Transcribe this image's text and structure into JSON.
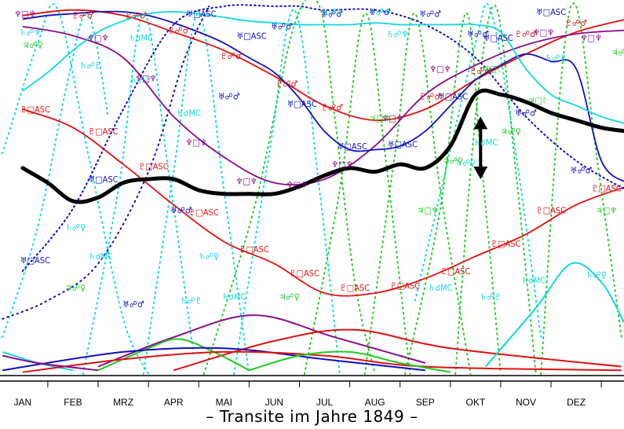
{
  "title": "– Transite im Jahre 1849 –",
  "chart_data": {
    "type": "line",
    "title": "– Transite im Jahre 1849 –",
    "xlabel": "",
    "ylabel": "",
    "x_tick_labels": [
      "JAN",
      "FEB",
      "MRZ",
      "APR",
      "MAI",
      "JUN",
      "JUL",
      "AUG",
      "SEP",
      "OKT",
      "NOV",
      "DEZ"
    ],
    "xlim": [
      0,
      12
    ],
    "ylim": [
      0,
      1
    ],
    "grid": false,
    "legend": "none",
    "colors": {
      "pluto": "#e01010",
      "neptune": "#8a0a8a",
      "uranus": "#1010c0",
      "saturn": "#10d8e0",
      "jupiter": "#20cc20",
      "bold": "#000000"
    },
    "series": [
      {
        "color": "pluto",
        "style": "solid",
        "x": [
          0,
          1,
          2,
          3,
          4,
          5,
          6,
          7,
          8,
          9,
          10,
          11,
          12
        ],
        "y": [
          0.975,
          0.99,
          0.975,
          0.93,
          0.88,
          0.81,
          0.73,
          0.69,
          0.72,
          0.8,
          0.87,
          0.93,
          0.965
        ]
      },
      {
        "color": "pluto",
        "style": "solid",
        "x": [
          0,
          1,
          2,
          3,
          4,
          5,
          6,
          7,
          8,
          9,
          10,
          11,
          12
        ],
        "y": [
          0.72,
          0.67,
          0.57,
          0.46,
          0.36,
          0.3,
          0.22,
          0.22,
          0.26,
          0.32,
          0.38,
          0.46,
          0.51
        ]
      },
      {
        "color": "neptune",
        "style": "solid",
        "x": [
          0,
          1,
          2,
          3,
          4,
          5,
          6,
          7,
          8,
          9,
          10,
          11,
          12
        ],
        "y": [
          0.945,
          0.92,
          0.86,
          0.7,
          0.59,
          0.52,
          0.53,
          0.62,
          0.76,
          0.84,
          0.895,
          0.925,
          0.935
        ]
      },
      {
        "color": "uranus",
        "style": "solid",
        "x": [
          0,
          0.5,
          1,
          1.5,
          2,
          2.5,
          3,
          3.5,
          4,
          4.5,
          5,
          5.5,
          6,
          6.5,
          7,
          7.5,
          8,
          8.5,
          9,
          9.5,
          10,
          10.5,
          11,
          11.5,
          12
        ],
        "y": [
          0.965,
          0.975,
          0.98,
          0.985,
          0.985,
          0.975,
          0.955,
          0.93,
          0.9,
          0.86,
          0.82,
          0.75,
          0.66,
          0.61,
          0.61,
          0.62,
          0.66,
          0.73,
          0.8,
          0.84,
          0.87,
          0.85,
          0.83,
          0.58,
          0.52
        ]
      },
      {
        "color": "uranus",
        "style": "dotted",
        "x": [
          0,
          1,
          2,
          3,
          4,
          5,
          5.5,
          6,
          7,
          8,
          9,
          10,
          11,
          12
        ],
        "y": [
          0.28,
          0.45,
          0.72,
          0.95,
          1,
          1,
          1,
          0.99,
          0.99,
          0.95,
          0.86,
          0.7,
          0.58,
          0.5
        ]
      },
      {
        "color": "saturn",
        "style": "solid",
        "x": [
          0,
          0.5,
          1,
          1.5,
          2,
          2.5,
          3,
          3.5,
          4,
          4.5,
          5,
          5.5,
          6,
          6.5,
          7,
          7.5,
          8,
          8.5,
          9,
          9.5,
          10,
          10.5,
          11,
          11.5,
          12
        ],
        "y": [
          0.77,
          0.82,
          0.88,
          0.93,
          0.96,
          0.98,
          0.985,
          0.98,
          0.97,
          0.96,
          0.955,
          0.95,
          0.95,
          0.95,
          0.955,
          0.95,
          0.95,
          0.95,
          0.95,
          0.93,
          0.83,
          0.76,
          0.73,
          0.7,
          0.68
        ]
      },
      {
        "color": "bold",
        "style": "bold",
        "x": [
          0,
          0.5,
          1,
          1.5,
          2,
          2.5,
          3,
          3.5,
          4,
          4.5,
          5,
          5.5,
          6,
          6.5,
          7,
          7.5,
          8,
          8.5,
          9,
          9.5,
          10,
          10.5,
          11,
          11.5,
          12
        ],
        "y": [
          0.56,
          0.52,
          0.47,
          0.48,
          0.52,
          0.53,
          0.53,
          0.5,
          0.49,
          0.49,
          0.49,
          0.51,
          0.54,
          0.56,
          0.55,
          0.57,
          0.56,
          0.62,
          0.76,
          0.76,
          0.74,
          0.71,
          0.69,
          0.67,
          0.66
        ]
      }
    ],
    "annotations": [
      {
        "text": "♇☍♂",
        "x": 1.2,
        "y": 0.975,
        "color": "pluto"
      },
      {
        "text": "♇☍♂",
        "x": 2.25,
        "y": 0.975,
        "color": "pluto"
      },
      {
        "text": "♇☍♂",
        "x": 3.1,
        "y": 0.935,
        "color": "pluto"
      },
      {
        "text": "♇☍♂",
        "x": 4.15,
        "y": 0.865,
        "color": "pluto"
      },
      {
        "text": "♇☍♂",
        "x": 5.25,
        "y": 0.79,
        "color": "pluto"
      },
      {
        "text": "♇☍♂",
        "x": 6.15,
        "y": 0.725,
        "color": "pluto"
      },
      {
        "text": "♇☍♂",
        "x": 8.1,
        "y": 0.755,
        "color": "pluto"
      },
      {
        "text": "♇☍♂",
        "x": 9.1,
        "y": 0.825,
        "color": "pluto"
      },
      {
        "text": "♇☍♂",
        "x": 10.0,
        "y": 0.925,
        "color": "pluto"
      },
      {
        "text": "♇☍♂",
        "x": 11.0,
        "y": 0.955,
        "color": "pluto"
      },
      {
        "text": "♇□ASC",
        "x": 0.25,
        "y": 0.72,
        "color": "pluto"
      },
      {
        "text": "♇□ASC",
        "x": 1.6,
        "y": 0.66,
        "color": "pluto"
      },
      {
        "text": "♇□ASC",
        "x": 2.6,
        "y": 0.565,
        "color": "pluto"
      },
      {
        "text": "♇□ASC",
        "x": 3.6,
        "y": 0.44,
        "color": "pluto"
      },
      {
        "text": "♇□ASC",
        "x": 4.6,
        "y": 0.34,
        "color": "pluto"
      },
      {
        "text": "♇□ASC",
        "x": 5.6,
        "y": 0.275,
        "color": "pluto"
      },
      {
        "text": "♇□ASC",
        "x": 6.6,
        "y": 0.235,
        "color": "pluto"
      },
      {
        "text": "♇□ASC",
        "x": 7.6,
        "y": 0.24,
        "color": "pluto"
      },
      {
        "text": "♇□ASC",
        "x": 8.6,
        "y": 0.28,
        "color": "pluto"
      },
      {
        "text": "♇□ASC",
        "x": 9.6,
        "y": 0.355,
        "color": "pluto"
      },
      {
        "text": "♇□ASC",
        "x": 10.5,
        "y": 0.445,
        "color": "pluto"
      },
      {
        "text": "♇□ASC",
        "x": 11.6,
        "y": 0.505,
        "color": "pluto"
      },
      {
        "text": "♆□♆",
        "x": 0.05,
        "y": 0.98,
        "color": "neptune"
      },
      {
        "text": "♆□♆",
        "x": 1.5,
        "y": 0.915,
        "color": "neptune"
      },
      {
        "text": "♆□♆",
        "x": 2.45,
        "y": 0.805,
        "color": "neptune"
      },
      {
        "text": "♆□♆",
        "x": 3.45,
        "y": 0.63,
        "color": "neptune"
      },
      {
        "text": "♆□♆",
        "x": 4.45,
        "y": 0.525,
        "color": "neptune"
      },
      {
        "text": "♆□♆",
        "x": 5.45,
        "y": 0.515,
        "color": "neptune"
      },
      {
        "text": "♆□♆",
        "x": 6.35,
        "y": 0.57,
        "color": "neptune"
      },
      {
        "text": "♆□♆",
        "x": 7.35,
        "y": 0.695,
        "color": "neptune"
      },
      {
        "text": "♆□♆",
        "x": 8.3,
        "y": 0.83,
        "color": "neptune"
      },
      {
        "text": "♆□♆",
        "x": 10.35,
        "y": 0.93,
        "color": "neptune"
      },
      {
        "text": "♆□♆",
        "x": 11.3,
        "y": 0.915,
        "color": "neptune"
      },
      {
        "text": "♅□ASC",
        "x": 3.55,
        "y": 0.98,
        "color": "uranus"
      },
      {
        "text": "♅□ASC",
        "x": 4.55,
        "y": 0.92,
        "color": "uranus"
      },
      {
        "text": "♅□ASC",
        "x": 5.55,
        "y": 0.735,
        "color": "uranus"
      },
      {
        "text": "♅□ASC",
        "x": 6.55,
        "y": 0.62,
        "color": "uranus"
      },
      {
        "text": "♅□ASC",
        "x": 7.55,
        "y": 0.625,
        "color": "uranus"
      },
      {
        "text": "♅□ASC",
        "x": 8.55,
        "y": 0.755,
        "color": "uranus"
      },
      {
        "text": "♅□ASC",
        "x": 9.45,
        "y": 0.915,
        "color": "uranus"
      },
      {
        "text": "♅□ASC",
        "x": 10.5,
        "y": 0.985,
        "color": "uranus"
      },
      {
        "text": "♅□ASC",
        "x": 1.6,
        "y": 0.53,
        "color": "uranus"
      },
      {
        "text": "♅□ASC",
        "x": 0.25,
        "y": 0.31,
        "color": "uranus"
      },
      {
        "text": "♅☍♂",
        "x": 2.2,
        "y": 0.19,
        "color": "uranus"
      },
      {
        "text": "♅☍♂",
        "x": 3.15,
        "y": 0.445,
        "color": "uranus"
      },
      {
        "text": "♅☍♂",
        "x": 4.1,
        "y": 0.755,
        "color": "uranus"
      },
      {
        "text": "♅☍♂",
        "x": 5.15,
        "y": 0.945,
        "color": "uranus"
      },
      {
        "text": "♅☍♂",
        "x": 6.15,
        "y": 0.98,
        "color": "uranus"
      },
      {
        "text": "♅☍♂",
        "x": 7.1,
        "y": 0.985,
        "color": "uranus"
      },
      {
        "text": "♅☍♂",
        "x": 8.1,
        "y": 0.98,
        "color": "uranus"
      },
      {
        "text": "♅☍♂",
        "x": 9.05,
        "y": 0.925,
        "color": "uranus"
      },
      {
        "text": "♅☍♂",
        "x": 10.0,
        "y": 0.71,
        "color": "uranus"
      },
      {
        "text": "♅☍♂",
        "x": 11.1,
        "y": 0.555,
        "color": "uranus"
      },
      {
        "text": "♄☌MC",
        "x": 2.35,
        "y": 0.915,
        "color": "saturn"
      },
      {
        "text": "♄☌MC",
        "x": 3.3,
        "y": 0.71,
        "color": "saturn"
      },
      {
        "text": "♄☌MC",
        "x": 1.55,
        "y": 0.32,
        "color": "saturn"
      },
      {
        "text": "♄☌MC",
        "x": 4.2,
        "y": 0.21,
        "color": "saturn"
      },
      {
        "text": "♄☌MC",
        "x": 8.3,
        "y": 0.235,
        "color": "saturn"
      },
      {
        "text": "♄☌MC",
        "x": 9.2,
        "y": 0.63,
        "color": "saturn"
      },
      {
        "text": "♄☌MC",
        "x": 10.15,
        "y": 0.255,
        "color": "saturn"
      },
      {
        "text": "♄☍♆",
        "x": 6.15,
        "y": 0.985,
        "color": "saturn"
      },
      {
        "text": "♄☍♆",
        "x": 7.1,
        "y": 0.985,
        "color": "saturn"
      },
      {
        "text": "♄☍♆",
        "x": 7.45,
        "y": 0.925,
        "color": "saturn"
      },
      {
        "text": "♄☍♆",
        "x": 0.15,
        "y": 0.93,
        "color": "saturn"
      },
      {
        "text": "♄☍♇",
        "x": 1.35,
        "y": 0.84,
        "color": "saturn"
      },
      {
        "text": "♄☍♇",
        "x": 2.35,
        "y": 0.8,
        "color": "saturn"
      },
      {
        "text": "♄☍♇",
        "x": 3.35,
        "y": 0.2,
        "color": "saturn"
      },
      {
        "text": "♄☍♇",
        "x": 9.3,
        "y": 0.21,
        "color": "saturn"
      },
      {
        "text": "♄☍♇",
        "x": 10.6,
        "y": 0.86,
        "color": "saturn"
      },
      {
        "text": "♄☍♀",
        "x": 1.05,
        "y": 0.4,
        "color": "saturn"
      },
      {
        "text": "♄☍♀",
        "x": 3.7,
        "y": 0.32,
        "color": "saturn"
      },
      {
        "text": "♄☍♀",
        "x": 8.8,
        "y": 0.575,
        "color": "saturn"
      },
      {
        "text": "♄☍♀",
        "x": 11.4,
        "y": 0.27,
        "color": "saturn"
      },
      {
        "text": "♃□☾",
        "x": 10.25,
        "y": 0.745,
        "color": "jupiter"
      },
      {
        "text": "♃□☾",
        "x": 9.35,
        "y": 0.83,
        "color": "jupiter"
      },
      {
        "text": "♃□♆",
        "x": 8.05,
        "y": 0.445,
        "color": "jupiter"
      },
      {
        "text": "♃□♆",
        "x": 11.6,
        "y": 0.445,
        "color": "jupiter"
      },
      {
        "text": "♃□♆",
        "x": 7.1,
        "y": 0.695,
        "color": "jupiter"
      },
      {
        "text": "♃☍♀",
        "x": 1.05,
        "y": 0.235,
        "color": "jupiter"
      },
      {
        "text": "♃☍♀",
        "x": 5.3,
        "y": 0.21,
        "color": "jupiter"
      },
      {
        "text": "♃☍♀",
        "x": 8.55,
        "y": 0.58,
        "color": "jupiter"
      },
      {
        "text": "♃☍♀",
        "x": 9.7,
        "y": 0.66,
        "color": "jupiter"
      },
      {
        "text": "♃☍♀",
        "x": 0.2,
        "y": 0.895,
        "color": "jupiter"
      },
      {
        "text": "♃☍♀",
        "x": 11.9,
        "y": 0.875,
        "color": "jupiter"
      }
    ]
  }
}
